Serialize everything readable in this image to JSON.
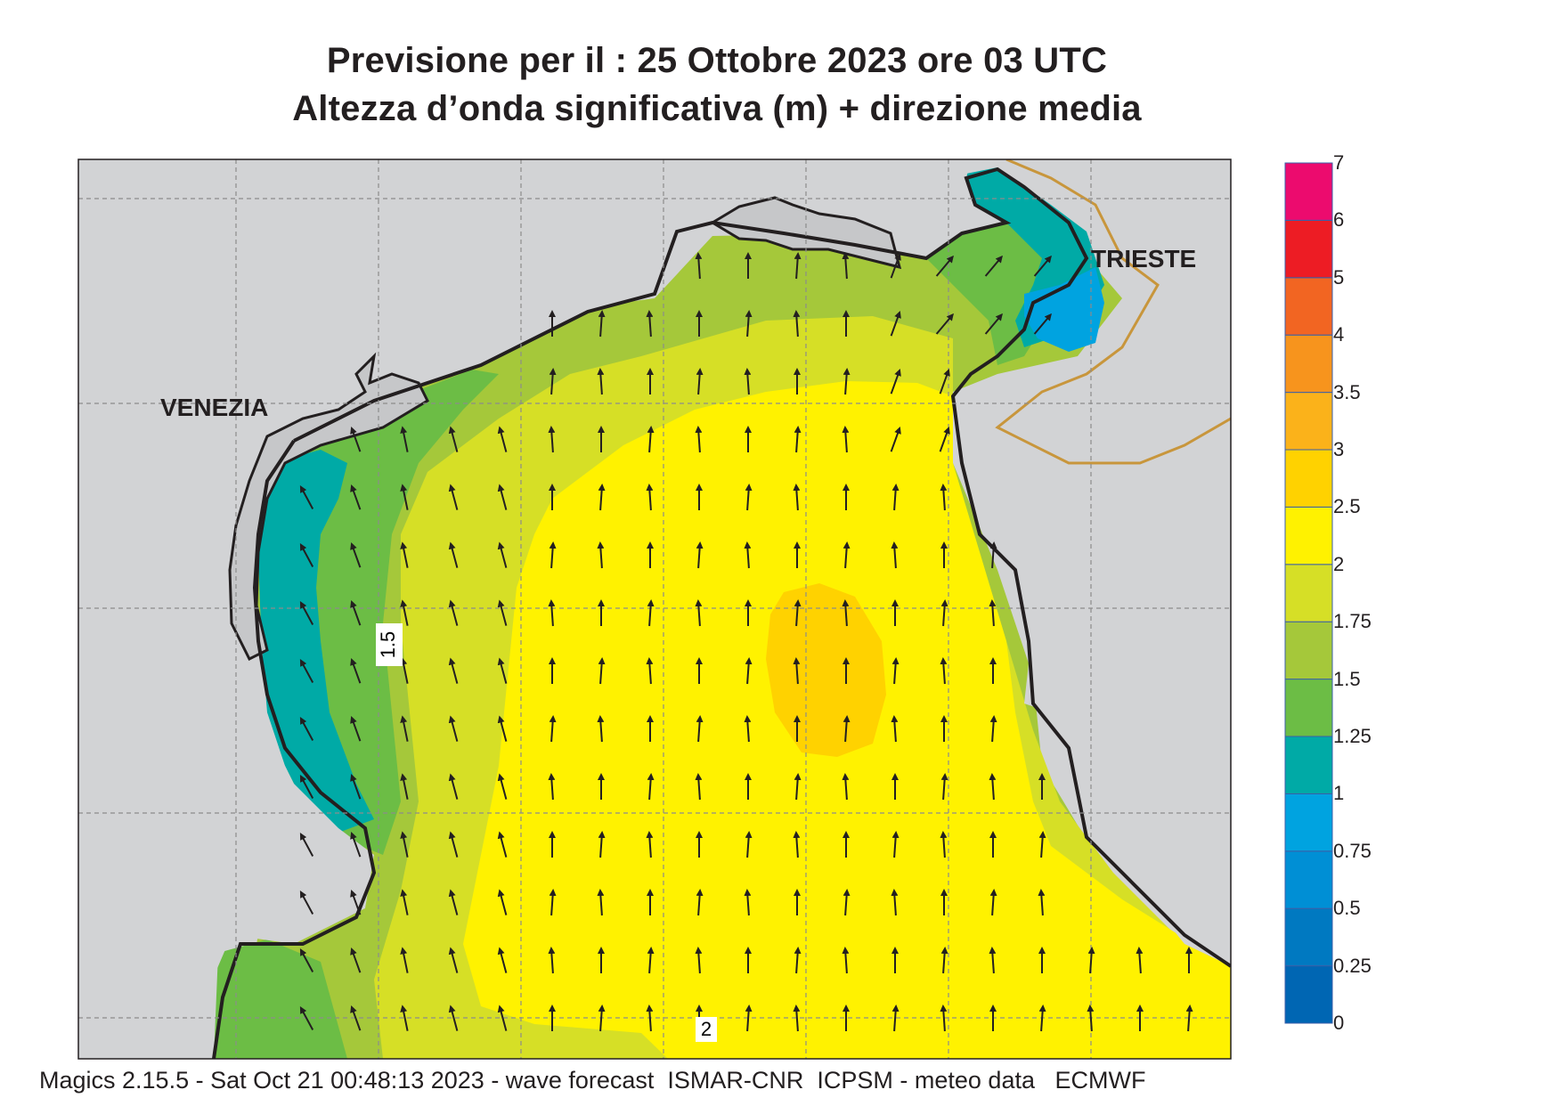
{
  "header": {
    "title_line1": "Previsione per il  :  25  Ottobre  2023   ore 03 UTC",
    "title_line2": "Altezza d’onda significativa (m) + direzione media"
  },
  "map": {
    "place_labels": {
      "venezia": "VENEZIA",
      "trieste": "TRIESTE"
    },
    "contour_labels": {
      "a": "1.5",
      "b": "2"
    },
    "colors": {
      "land": "#d2d3d5",
      "coast": "#231f20",
      "border": "#c8963c",
      "grid": "#8c8c8c"
    }
  },
  "colorbar": {
    "labels": [
      "0",
      "0.25",
      "0.5",
      "0.75",
      "1",
      "1.25",
      "1.5",
      "1.75",
      "2",
      "2.5",
      "3",
      "3.5",
      "4",
      "5",
      "6",
      "7"
    ],
    "colors": [
      "#0066b3",
      "#0079c1",
      "#008fd5",
      "#00a3e0",
      "#00aaa6",
      "#6cbd45",
      "#a5c83a",
      "#d6df26",
      "#fff200",
      "#ffd200",
      "#fbb21a",
      "#f7941d",
      "#f26522",
      "#ed1c24",
      "#ec0b6e"
    ]
  },
  "footer": {
    "text": "Magics 2.15.5 - Sat Oct 21 00:48:13 2023 - wave forecast  ISMAR-CNR  ICPSM - meteo data   ECMWF"
  }
}
